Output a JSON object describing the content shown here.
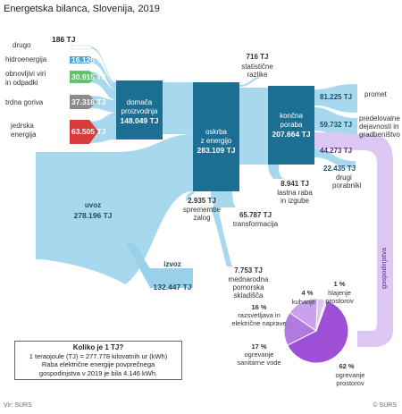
{
  "title": "Energetska bilanca, Slovenija, 2019",
  "sources": [
    {
      "label": "drugo",
      "value": "186 TJ",
      "color": "#ffffff"
    },
    {
      "label": "hidroenergija",
      "value": "16.126 TJ",
      "color": "#4aa8dc"
    },
    {
      "label": "obnovljivi viri in odpadki",
      "value": "30.915 TJ",
      "color": "#5fc46a"
    },
    {
      "label": "trdna goriva",
      "value": "37.318 TJ",
      "color": "#8c8c8c"
    },
    {
      "label": "jedrska energija",
      "value": "63.505 TJ",
      "color": "#d93a3a"
    }
  ],
  "nodes": {
    "domestic": {
      "label": "domača proizvodnja",
      "value": "148.049 TJ"
    },
    "supply": {
      "label": "oskrba z energijo",
      "value": "283.109 TJ"
    },
    "final": {
      "label": "končna poraba",
      "value": "207.664 TJ"
    },
    "import": {
      "label": "uvoz",
      "value": "278.196 TJ"
    },
    "export": {
      "label": "izvoz",
      "value": "132.447 TJ"
    }
  },
  "flows": {
    "stat": {
      "value": "716 TJ",
      "label": "statistične razlike"
    },
    "stock": {
      "value": "2.935 TJ",
      "label": "spremembe zalog"
    },
    "transform": {
      "value": "65.787 TJ",
      "label": "transformacija"
    },
    "own_use": {
      "value": "8.941 TJ",
      "label": "lastna raba in izgube"
    },
    "bunkers": {
      "value": "7.753 TJ",
      "label": "mednarodna pomorska skladišča"
    },
    "transport": {
      "value": "81.225 TJ",
      "label": "promet"
    },
    "industry": {
      "value": "59.732 TJ",
      "label": "predelovalne dejavnosti in gradbeništvo"
    },
    "households": {
      "value": "44.273 TJ",
      "label": "gospodinjstva"
    },
    "others": {
      "value": "22.435 TJ",
      "label": "drugi porabniki"
    }
  },
  "household_pie": [
    {
      "label": "ogrevanje prostorov",
      "percent": 62,
      "pct_label": "62 %",
      "color": "#9d4fd6"
    },
    {
      "label": "ogrevanje sanitarne vode",
      "percent": 17,
      "pct_label": "17 %",
      "color": "#b07ae0"
    },
    {
      "label": "razsvetljava in električne naprave",
      "percent": 16,
      "pct_label": "16 %",
      "color": "#c8a0ec"
    },
    {
      "label": "kuhanje",
      "percent": 4,
      "pct_label": "4 %",
      "color": "#ddc4f4"
    },
    {
      "label": "hlajenje prostorov",
      "percent": 1,
      "pct_label": "1 %",
      "color": "#ecdff9"
    }
  ],
  "info": {
    "heading": "Koliko je 1 TJ?",
    "line1": "1 teraojoule (TJ) = 277.778 kilovatnih ur (kWh)",
    "line2": "Raba električne energije povprečnega",
    "line3": "gospodinjstva v 2019 je bila 4.146 kWh."
  },
  "footer": {
    "source": "Vir: SURS",
    "copyright": "© SURS"
  },
  "colors": {
    "flow": "#a8d8ee",
    "node": "#1c6f93",
    "household_flow": "#dcc8f2",
    "text": "#222222"
  }
}
